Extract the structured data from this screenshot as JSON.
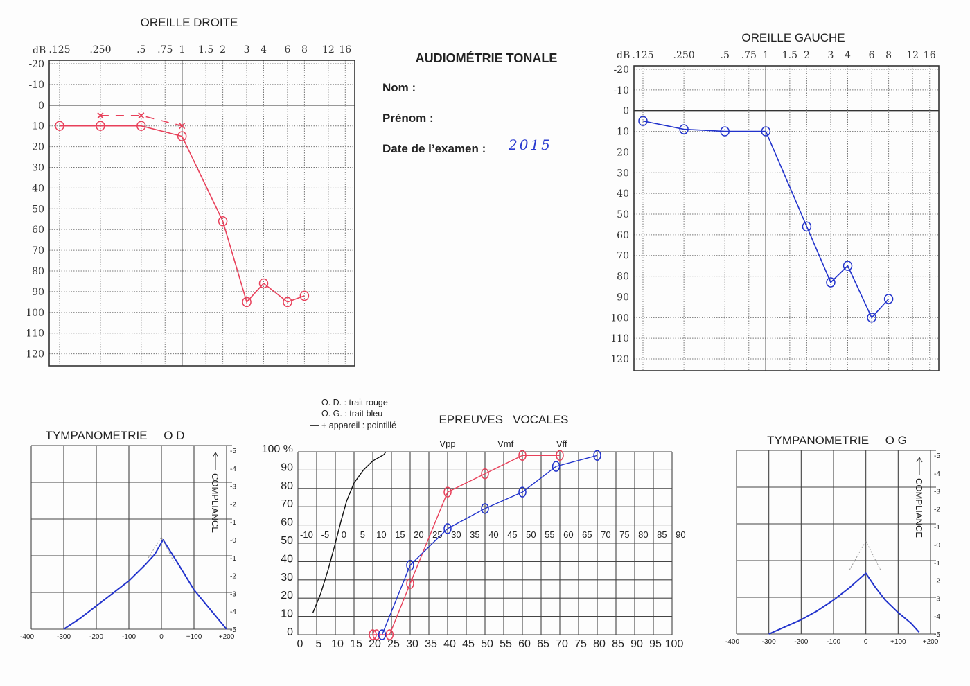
{
  "header": {
    "title": "AUDIOMÉTRIE TONALE",
    "nom_label": "Nom :",
    "prenom_label": "Prénom :",
    "date_label": "Date de l’examen :",
    "date_value": "2015"
  },
  "speech_legend": [
    "— O. D. : trait rouge",
    "— O. G. : trait bleu",
    "— + appareil : pointillé"
  ],
  "colors": {
    "right_ear": "#e8405a",
    "left_ear": "#2233cc",
    "reference": "#111111",
    "grid": "#444444"
  },
  "chart_data": [
    {
      "type": "line",
      "title": "OREILLE DROITE",
      "ylabel": "dB",
      "x_scale": "log",
      "x_ticks": [
        ".125",
        ".250",
        ".5",
        ".75",
        "1",
        "1.5",
        "2",
        "3",
        "4",
        "6",
        "8",
        "12",
        "16"
      ],
      "x_values_khz": [
        0.125,
        0.25,
        0.5,
        0.75,
        1,
        1.5,
        2,
        3,
        4,
        6,
        8,
        12,
        16
      ],
      "y_ticks": [
        "-20",
        "-10",
        "0",
        "10",
        "20",
        "30",
        "40",
        "50",
        "60",
        "70",
        "80",
        "90",
        "100",
        "110",
        "120"
      ],
      "ylim": [
        -20,
        120
      ],
      "y_inverted": true,
      "grid": "dotted",
      "series": [
        {
          "color": "#e8405a",
          "marker": "circle",
          "line": "solid",
          "points": [
            [
              0.125,
              10
            ],
            [
              0.25,
              10
            ],
            [
              0.5,
              10
            ],
            [
              1,
              15
            ],
            [
              2,
              56
            ],
            [
              3,
              95
            ],
            [
              4,
              86
            ],
            [
              6,
              95
            ],
            [
              8,
              92
            ]
          ]
        },
        {
          "color": "#e8405a",
          "marker": "x",
          "line": "dashed",
          "points": [
            [
              0.25,
              5
            ],
            [
              0.5,
              5
            ],
            [
              1,
              10
            ]
          ]
        }
      ]
    },
    {
      "type": "line",
      "title": "OREILLE GAUCHE",
      "ylabel": "dB",
      "x_scale": "log",
      "x_ticks": [
        ".125",
        ".250",
        ".5",
        ".75",
        "1",
        "1.5",
        "2",
        "3",
        "4",
        "6",
        "8",
        "12",
        "16"
      ],
      "x_values_khz": [
        0.125,
        0.25,
        0.5,
        0.75,
        1,
        1.5,
        2,
        3,
        4,
        6,
        8,
        12,
        16
      ],
      "y_ticks": [
        "-20",
        "-10",
        "0",
        "10",
        "20",
        "30",
        "40",
        "50",
        "60",
        "70",
        "80",
        "90",
        "100",
        "110",
        "120"
      ],
      "ylim": [
        -20,
        120
      ],
      "y_inverted": true,
      "grid": "dotted",
      "series": [
        {
          "color": "#2233cc",
          "marker": "circle",
          "line": "solid",
          "points": [
            [
              0.125,
              5
            ],
            [
              0.25,
              9
            ],
            [
              0.5,
              10
            ],
            [
              1,
              10
            ],
            [
              2,
              56
            ],
            [
              3,
              83
            ],
            [
              4,
              75
            ],
            [
              6,
              100
            ],
            [
              8,
              91
            ]
          ]
        }
      ]
    },
    {
      "type": "line",
      "title": "EPREUVES   VOCALES",
      "ylabel": "100 %",
      "y_ticks": [
        "100 %",
        "90",
        "80",
        "70",
        "60",
        "50",
        "40",
        "30",
        "20",
        "10",
        "0"
      ],
      "ylim": [
        0,
        100
      ],
      "x_ticks": [
        "0",
        "5",
        "10",
        "15",
        "20",
        "25",
        "30",
        "35",
        "40",
        "45",
        "50",
        "55",
        "60",
        "65",
        "70",
        "75",
        "80",
        "85",
        "90",
        "95",
        "100"
      ],
      "xlim": [
        0,
        100
      ],
      "x2_ticks": [
        "-10",
        "-5",
        "0",
        "5",
        "10",
        "15",
        "20",
        "25",
        "30",
        "35",
        "40",
        "45",
        "50",
        "55",
        "60",
        "65",
        "70",
        "75",
        "80",
        "85",
        "90"
      ],
      "voice_labels": [
        "Vpp",
        "Vmf",
        "Vff"
      ],
      "grid": "solid",
      "series": [
        {
          "color": "#111111",
          "marker": "none",
          "points": [
            [
              4,
              12
            ],
            [
              6,
              22
            ],
            [
              8,
              35
            ],
            [
              10,
              50
            ],
            [
              11.5,
              62
            ],
            [
              13,
              73
            ],
            [
              15,
              83
            ],
            [
              17.5,
              90
            ],
            [
              20,
              95
            ],
            [
              23,
              98.5
            ],
            [
              23.5,
              100
            ]
          ]
        },
        {
          "name": "O. D. : trait rouge",
          "color": "#e8405a",
          "marker": "circle",
          "points": [
            [
              20,
              0
            ],
            [
              21,
              0
            ],
            [
              24.5,
              0
            ],
            [
              30,
              28
            ],
            [
              40,
              78
            ],
            [
              50,
              88
            ],
            [
              60,
              98
            ],
            [
              70,
              98
            ]
          ]
        },
        {
          "name": "O. G. : trait bleu",
          "color": "#2233cc",
          "marker": "circle",
          "points": [
            [
              22.5,
              0
            ],
            [
              30,
              38
            ],
            [
              40,
              58
            ],
            [
              50,
              69
            ],
            [
              60,
              78
            ],
            [
              69,
              92
            ],
            [
              80,
              98
            ]
          ]
        }
      ]
    },
    {
      "type": "line",
      "title": "TYMPANOMETRIE     O D",
      "ylabel": "COMPLIANCE",
      "x_ticks": [
        "-400",
        "-300",
        "-200",
        "-100",
        "0",
        "+100",
        "+200"
      ],
      "xlim": [
        -400,
        200
      ],
      "y_ticks": [
        "-5",
        "-4",
        "-3",
        "-2",
        "-1",
        "-0",
        "-1",
        "-2",
        "-3",
        "-4",
        "-5"
      ],
      "ylim": [
        -5,
        5
      ],
      "grid": "solid",
      "series": [
        {
          "color": "#2233cc",
          "line": "solid",
          "points": [
            [
              -300,
              -5
            ],
            [
              -250,
              -4.4
            ],
            [
              -200,
              -3.7
            ],
            [
              -150,
              -3.0
            ],
            [
              -100,
              -2.3
            ],
            [
              -50,
              -1.4
            ],
            [
              -20,
              -0.8
            ],
            [
              5,
              0
            ],
            [
              50,
              -1.3
            ],
            [
              100,
              -2.8
            ],
            [
              150,
              -3.9
            ],
            [
              200,
              -5
            ]
          ]
        },
        {
          "color": "#999999",
          "line": "dotted",
          "points": [
            [
              -40,
              -1
            ],
            [
              0,
              0.15
            ],
            [
              40,
              -1.3
            ]
          ]
        }
      ]
    },
    {
      "type": "line",
      "title": "TYMPANOMETRIE     O G",
      "ylabel": "COMPLIANCE",
      "x_ticks": [
        "-400",
        "-300",
        "-200",
        "-100",
        "0",
        "+100",
        "+200"
      ],
      "xlim": [
        -400,
        200
      ],
      "y_ticks": [
        "-5",
        "-4",
        "-3",
        "-2",
        "-1",
        "-0",
        "-1",
        "-2",
        "-3",
        "-4",
        "-5"
      ],
      "ylim": [
        -5,
        5
      ],
      "grid": "solid",
      "series": [
        {
          "color": "#2233cc",
          "line": "solid",
          "points": [
            [
              -300,
              -5
            ],
            [
              -250,
              -4.6
            ],
            [
              -200,
              -4.2
            ],
            [
              -150,
              -3.7
            ],
            [
              -100,
              -3.1
            ],
            [
              -50,
              -2.4
            ],
            [
              0,
              -1.6
            ],
            [
              30,
              -2.4
            ],
            [
              60,
              -3.1
            ],
            [
              100,
              -3.8
            ],
            [
              140,
              -4.4
            ],
            [
              165,
              -4.9
            ]
          ]
        },
        {
          "color": "#999999",
          "line": "dotted",
          "points": [
            [
              -50,
              -1.4
            ],
            [
              0,
              0.2
            ],
            [
              45,
              -1.4
            ]
          ]
        }
      ]
    }
  ]
}
